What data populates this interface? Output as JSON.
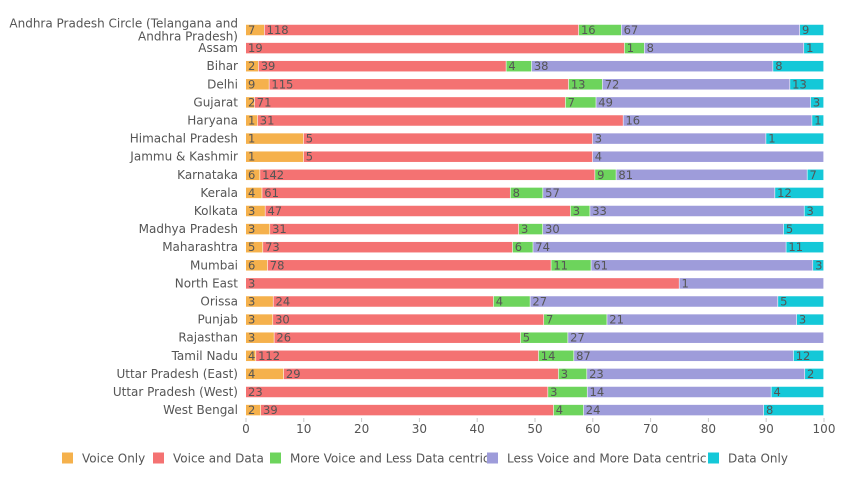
{
  "chart_data": {
    "type": "bar",
    "orientation": "horizontal",
    "stacked": "percent",
    "xlim": [
      0,
      100
    ],
    "x_ticks": [
      "0",
      "10",
      "20",
      "30",
      "40",
      "50",
      "60",
      "70",
      "80",
      "90",
      "100"
    ],
    "grid": false,
    "legend_position": "bottom",
    "categories": [
      [
        "Andhra Pradesh Circle (Telangana and",
        "Andhra Pradesh)"
      ],
      [
        "Assam"
      ],
      [
        "Bihar"
      ],
      [
        "Delhi"
      ],
      [
        "Gujarat"
      ],
      [
        "Haryana"
      ],
      [
        "Himachal Pradesh"
      ],
      [
        "Jammu & Kashmir"
      ],
      [
        "Karnataka"
      ],
      [
        "Kerala"
      ],
      [
        "Kolkata"
      ],
      [
        "Madhya Pradesh"
      ],
      [
        "Maharashtra"
      ],
      [
        "Mumbai"
      ],
      [
        "North East"
      ],
      [
        "Orissa"
      ],
      [
        "Punjab"
      ],
      [
        "Rajasthan"
      ],
      [
        "Tamil Nadu"
      ],
      [
        "Uttar Pradesh (East)"
      ],
      [
        "Uttar Pradesh (West)"
      ],
      [
        "West Bengal"
      ]
    ],
    "series": [
      {
        "name": "Voice Only",
        "color": "#f5b14c",
        "values": [
          7,
          0,
          2,
          9,
          2,
          1,
          1,
          1,
          6,
          4,
          3,
          3,
          5,
          6,
          0,
          3,
          3,
          3,
          4,
          4,
          0,
          2
        ]
      },
      {
        "name": "Voice and Data",
        "color": "#f47272",
        "values": [
          118,
          19,
          39,
          115,
          71,
          31,
          5,
          5,
          142,
          61,
          47,
          31,
          73,
          78,
          3,
          24,
          30,
          26,
          112,
          29,
          23,
          39
        ]
      },
      {
        "name": "More Voice and Less Data centric",
        "color": "#6dd45c",
        "values": [
          16,
          1,
          4,
          13,
          7,
          0,
          0,
          0,
          9,
          8,
          3,
          3,
          6,
          11,
          0,
          4,
          7,
          5,
          14,
          3,
          3,
          4
        ]
      },
      {
        "name": "Less Voice and More Data centric",
        "color": "#9e9cda",
        "values": [
          67,
          8,
          38,
          72,
          49,
          16,
          3,
          4,
          81,
          57,
          33,
          30,
          74,
          61,
          1,
          27,
          21,
          27,
          87,
          23,
          14,
          24
        ]
      },
      {
        "name": "Data Only",
        "color": "#14c8d8",
        "values": [
          9,
          1,
          8,
          13,
          3,
          1,
          1,
          0,
          7,
          12,
          3,
          5,
          11,
          3,
          0,
          5,
          3,
          0,
          12,
          2,
          4,
          8
        ]
      }
    ]
  }
}
